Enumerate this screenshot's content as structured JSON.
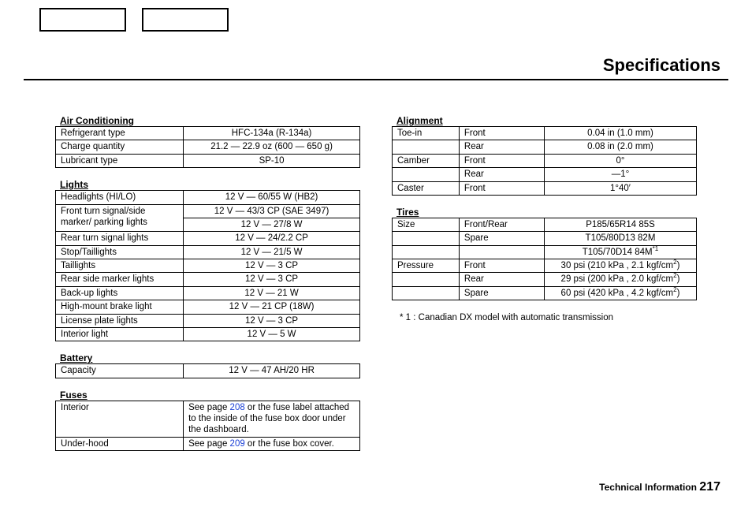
{
  "page": {
    "title": "Specifications",
    "footer_section": "Technical Information",
    "footer_page": "217"
  },
  "air_conditioning": {
    "title": "Air Conditioning",
    "rows": [
      {
        "label": "Refrigerant type",
        "value": "HFC-134a (R-134a)"
      },
      {
        "label": "Charge quantity",
        "value": "21.2 — 22.9 oz (600 — 650 g)"
      },
      {
        "label": "Lubricant type",
        "value": "SP-10"
      }
    ]
  },
  "lights": {
    "title": "Lights",
    "rows": [
      {
        "label": "Headlights (HI/LO)",
        "value": "12 V  —  60/55 W (HB2)"
      },
      {
        "label": "Front turn signal/side marker/ parking lights",
        "value_a": "12 V  —  43/3 CP (SAE 3497)",
        "value_b": "12 V  —  27/8 W"
      },
      {
        "label": "Rear turn signal lights",
        "value": "12 V  —  24/2.2 CP"
      },
      {
        "label": "Stop/Taillights",
        "value": "12 V  —  21/5 W"
      },
      {
        "label": "Taillights",
        "value": "12 V  —  3 CP"
      },
      {
        "label": "Rear side marker lights",
        "value": "12 V  —  3 CP"
      },
      {
        "label": "Back-up lights",
        "value": "12 V  —  21 W"
      },
      {
        "label": "High-mount brake light",
        "value": "12 V  —  21 CP (18W)"
      },
      {
        "label": "License plate lights",
        "value": "12 V  —  3 CP"
      },
      {
        "label": "Interior light",
        "value": "12 V  —  5 W"
      }
    ]
  },
  "battery": {
    "title": "Battery",
    "rows": [
      {
        "label": "Capacity",
        "value": "12 V  —  47 AH/20 HR"
      }
    ]
  },
  "fuses": {
    "title": "Fuses",
    "rows": [
      {
        "label": "Interior",
        "pre": "See page ",
        "link": "208",
        "post": " or the fuse label attached to the inside of the fuse box door under the dashboard."
      },
      {
        "label": "Under-hood",
        "pre": "See page ",
        "link": "209",
        "post": " or the fuse box cover."
      }
    ]
  },
  "alignment": {
    "title": "Alignment",
    "rows": [
      {
        "a": "Toe-in",
        "b": "Front",
        "v": "0.04 in (1.0 mm)"
      },
      {
        "a": "",
        "b": "Rear",
        "v": "0.08 in (2.0 mm)"
      },
      {
        "a": "Camber",
        "b": "Front",
        "v": "0°"
      },
      {
        "a": "",
        "b": "Rear",
        "v": "—1°"
      },
      {
        "a": "Caster",
        "b": "Front",
        "v": "1°40′"
      }
    ]
  },
  "tires": {
    "title": "Tires",
    "size": {
      "a": "Size",
      "front_rear_label": "Front/Rear",
      "front_rear_value": "P185/65R14 85S",
      "spare_label": "Spare",
      "spare_value_1": "T105/80D13 82M",
      "spare_value_2_pre": "T105/70D14 84M",
      "spare_value_2_sup": "*1"
    },
    "pressure": {
      "a": "Pressure",
      "rows": [
        {
          "b": "Front",
          "v_pre": "30 psi (210 kPa , 2.1 kgf/cm",
          "v_sup": "2",
          "v_post": ")"
        },
        {
          "b": "Rear",
          "v_pre": "29 psi (200 kPa , 2.0 kgf/cm",
          "v_sup": "2",
          "v_post": ")"
        },
        {
          "b": "Spare",
          "v_pre": "60 psi (420 kPa , 4.2 kgf/cm",
          "v_sup": "2",
          "v_post": ")"
        }
      ]
    }
  },
  "note": "* 1 : Canadian DX model with automatic transmission"
}
